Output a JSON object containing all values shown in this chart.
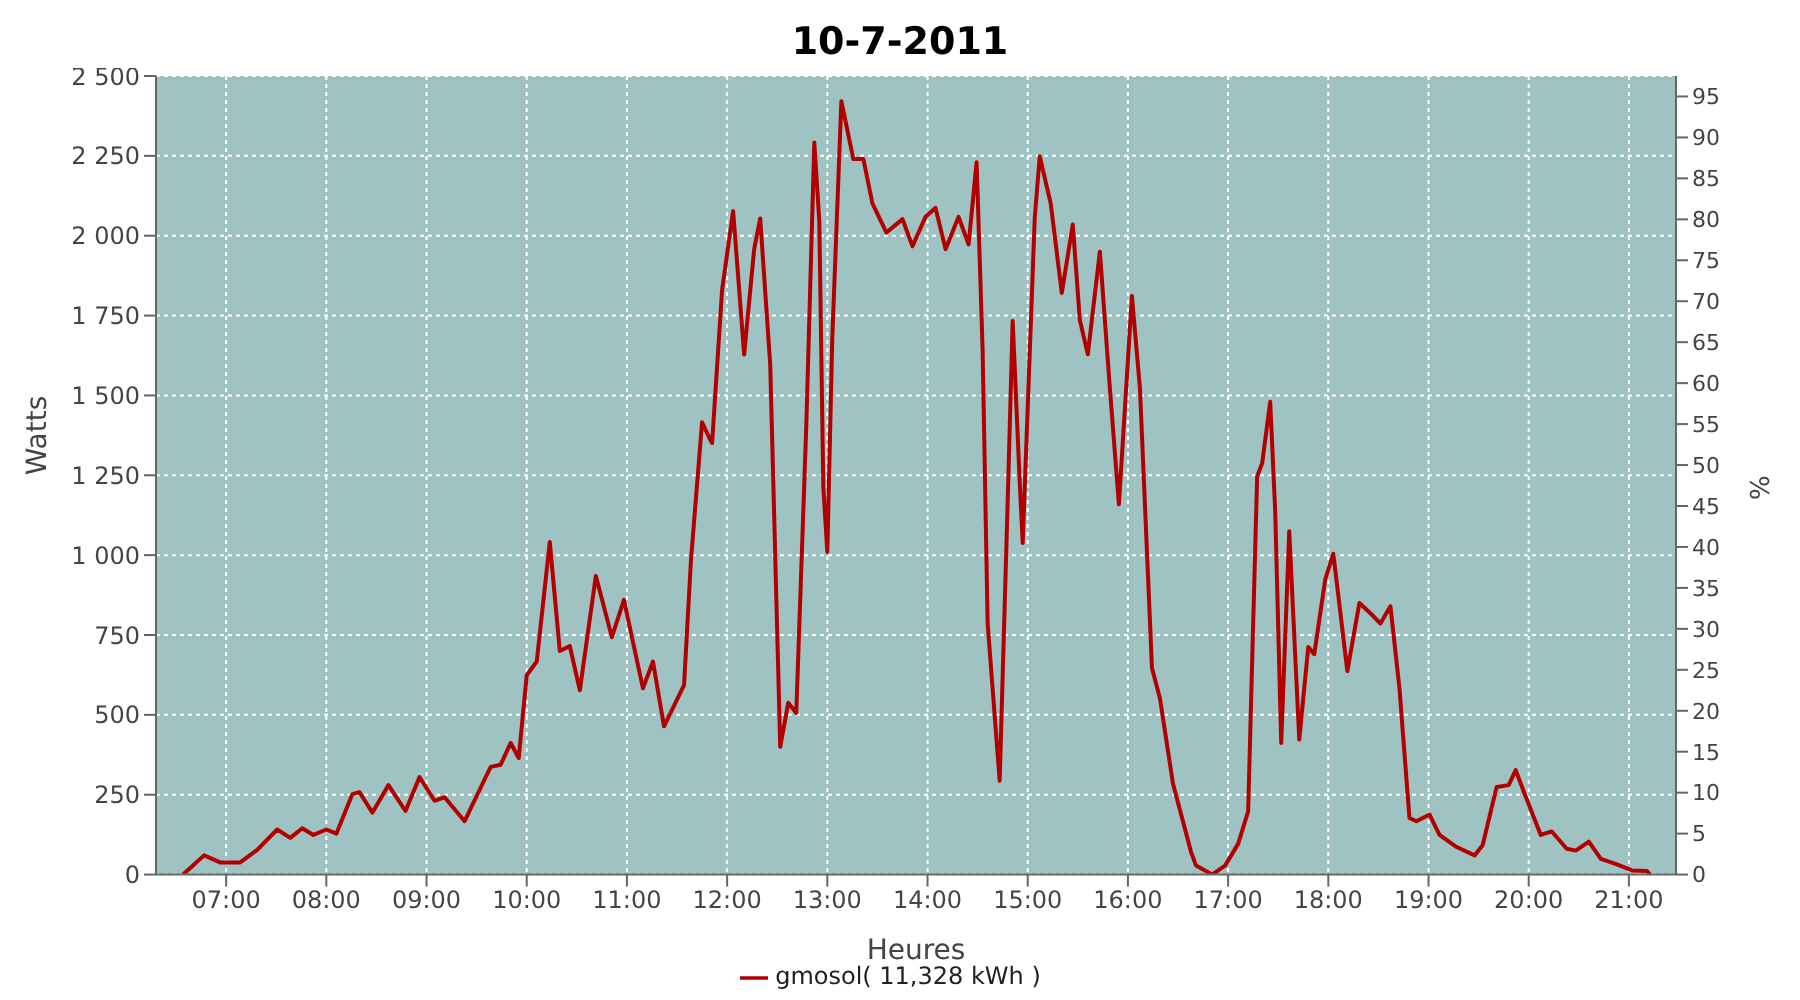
{
  "chart_data": {
    "type": "line",
    "title": "10-7-2011",
    "xlabel": "Heures",
    "ylabel": "Watts",
    "y2label": "%",
    "xlim": [
      6.3,
      21.47
    ],
    "xticks": [
      {
        "value": 7,
        "label": "07:00"
      },
      {
        "value": 8,
        "label": "08:00"
      },
      {
        "value": 9,
        "label": "09:00"
      },
      {
        "value": 10,
        "label": "10:00"
      },
      {
        "value": 11,
        "label": "11:00"
      },
      {
        "value": 12,
        "label": "12:00"
      },
      {
        "value": 13,
        "label": "13:00"
      },
      {
        "value": 14,
        "label": "14:00"
      },
      {
        "value": 15,
        "label": "15:00"
      },
      {
        "value": 16,
        "label": "16:00"
      },
      {
        "value": 17,
        "label": "17:00"
      },
      {
        "value": 18,
        "label": "18:00"
      },
      {
        "value": 19,
        "label": "19:00"
      },
      {
        "value": 20,
        "label": "20:00"
      },
      {
        "value": 21,
        "label": "21:00"
      }
    ],
    "ylim": [
      0,
      2500
    ],
    "yticks": [
      0,
      250,
      500,
      750,
      {
        "value": 1000,
        "label": "1 000"
      },
      {
        "value": 1250,
        "label": "1 250"
      },
      {
        "value": 1500,
        "label": "1 500"
      },
      {
        "value": 1750,
        "label": "1 750"
      },
      {
        "value": 2000,
        "label": "2 000"
      },
      {
        "value": 2250,
        "label": "2 250"
      },
      {
        "value": 2500,
        "label": "2 500"
      }
    ],
    "y2lim": [
      0,
      97.5
    ],
    "y2ticks": [
      0,
      5,
      10,
      15,
      20,
      25,
      30,
      35,
      40,
      45,
      50,
      55,
      60,
      65,
      70,
      75,
      80,
      85,
      90,
      95
    ],
    "grid": true,
    "legend": "bottom",
    "marker": "none",
    "line_style": "solid",
    "x": [
      6.57,
      6.78,
      6.94,
      7.14,
      7.31,
      7.51,
      7.64,
      7.76,
      7.87,
      8.0,
      8.1,
      8.26,
      8.33,
      8.46,
      8.62,
      8.79,
      8.93,
      9.08,
      9.18,
      9.38,
      9.64,
      9.74,
      9.84,
      9.92,
      10.0,
      10.1,
      10.23,
      10.33,
      10.43,
      10.53,
      10.69,
      10.85,
      10.97,
      11.16,
      11.26,
      11.37,
      11.57,
      11.64,
      11.75,
      11.83,
      11.85,
      11.95,
      12.06,
      12.17,
      12.27,
      12.33,
      12.43,
      12.53,
      12.61,
      12.69,
      12.79,
      12.87,
      12.92,
      12.96,
      13.0,
      13.05,
      13.14,
      13.26,
      13.36,
      13.45,
      13.59,
      13.75,
      13.85,
      13.98,
      14.08,
      14.18,
      14.31,
      14.41,
      14.49,
      14.55,
      14.6,
      14.72,
      14.8,
      14.85,
      14.92,
      14.95,
      15.07,
      15.12,
      15.23,
      15.34,
      15.45,
      15.52,
      15.6,
      15.72,
      15.82,
      15.91,
      16.04,
      16.12,
      16.24,
      16.32,
      16.45,
      16.63,
      16.68,
      16.84,
      16.97,
      17.1,
      17.2,
      17.24,
      17.29,
      17.34,
      17.42,
      17.47,
      17.53,
      17.61,
      17.71,
      17.8,
      17.86,
      17.97,
      18.05,
      18.19,
      18.31,
      18.42,
      18.52,
      18.62,
      18.71,
      18.81,
      18.88,
      19.01,
      19.11,
      19.27,
      19.46,
      19.54,
      19.68,
      19.8,
      19.87,
      19.96,
      20.12,
      20.23,
      20.38,
      20.47,
      20.6,
      20.72,
      20.88,
      21.03,
      21.18,
      21.21
    ],
    "series": [
      {
        "name": "gmosol( 11,328 kWh )",
        "color": "#b20000",
        "values": [
          0,
          60,
          38,
          38,
          77,
          141,
          115,
          145,
          124,
          141,
          128,
          252,
          258,
          194,
          280,
          199,
          305,
          231,
          242,
          167,
          337,
          344,
          412,
          365,
          624,
          667,
          1041,
          700,
          715,
          577,
          935,
          743,
          860,
          583,
          667,
          464,
          593,
          988,
          1416,
          1362,
          1351,
          1831,
          2077,
          1628,
          1958,
          2054,
          1597,
          400,
          538,
          506,
          1404,
          2292,
          2046,
          1213,
          1010,
          1684,
          2421,
          2240,
          2240,
          2101,
          2010,
          2052,
          1967,
          2059,
          2087,
          1958,
          2059,
          1973,
          2230,
          1641,
          786,
          294,
          1169,
          1733,
          1230,
          1038,
          2055,
          2249,
          2100,
          1821,
          2035,
          1736,
          1629,
          1950,
          1522,
          1159,
          1811,
          1522,
          647,
          551,
          284,
          71,
          28,
          0,
          28,
          96,
          198,
          669,
          1246,
          1288,
          1480,
          1138,
          412,
          1075,
          423,
          712,
          690,
          925,
          1004,
          637,
          850,
          818,
          786,
          840,
          583,
          177,
          167,
          188,
          124,
          88,
          60,
          92,
          274,
          280,
          327,
          252,
          124,
          135,
          81,
          75,
          103,
          49,
          32,
          13,
          11,
          0
        ]
      }
    ]
  }
}
